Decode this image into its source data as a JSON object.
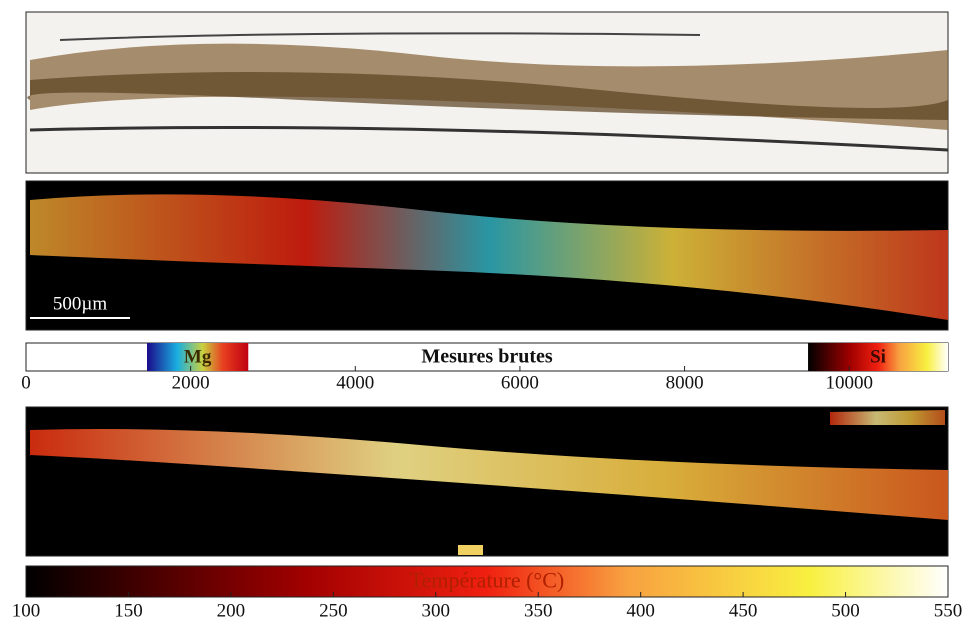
{
  "scale_bar": "500µm",
  "colorbar_raw": {
    "title": "Mesures brutes",
    "xlim": [
      0,
      11200
    ],
    "xticks": [
      0,
      2000,
      4000,
      6000,
      8000,
      10000
    ],
    "segments": [
      {
        "label": "Mg",
        "range": [
          1470,
          2700
        ]
      },
      {
        "label": "Si",
        "range": [
          9500,
          11200
        ]
      }
    ]
  },
  "colorbar_temperature": {
    "title": "Température (°C)",
    "xlim": [
      100,
      550
    ],
    "xticks": [
      100,
      150,
      200,
      250,
      300,
      350,
      400,
      450,
      500,
      550
    ]
  }
}
